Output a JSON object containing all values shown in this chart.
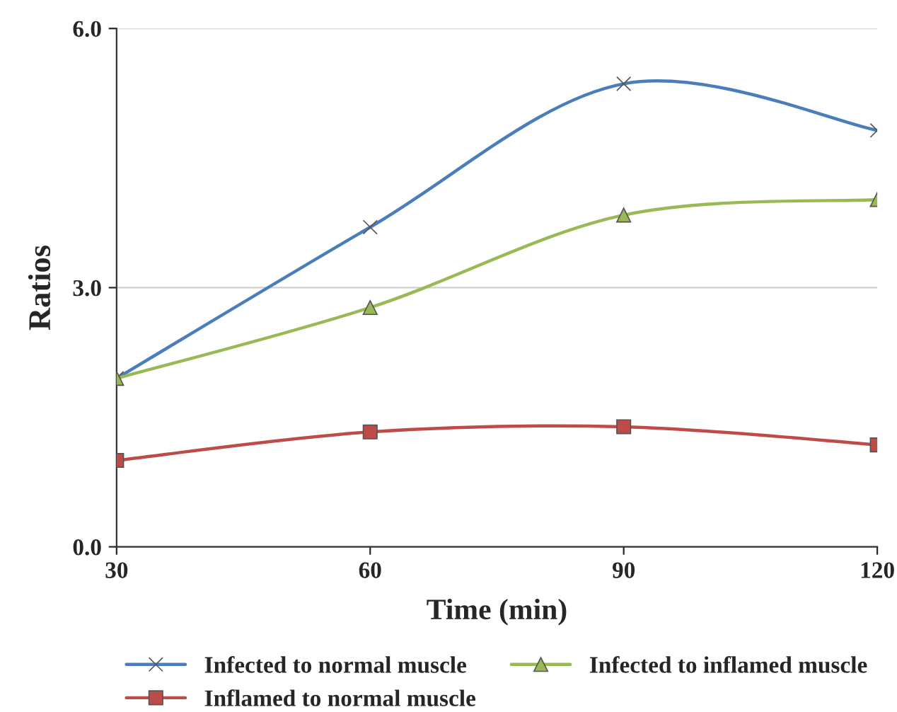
{
  "chart_data": {
    "type": "line",
    "xlabel": "Time (min)",
    "ylabel": "Ratios",
    "x": [
      30,
      60,
      90,
      120
    ],
    "xlim": [
      30,
      120
    ],
    "xticks": [
      30,
      60,
      90,
      120
    ],
    "ylim": [
      0,
      6
    ],
    "yticks": [
      {
        "value": 0,
        "label": "0.0"
      },
      {
        "value": 3,
        "label": "3.0"
      },
      {
        "value": 6,
        "label": "6.0"
      }
    ],
    "grid": "y",
    "legend": "bottom",
    "series": [
      {
        "name": "Infected to normal muscle",
        "color": "#4a7ebb",
        "marker": "cross",
        "values": [
          1.95,
          3.7,
          5.36,
          4.82
        ]
      },
      {
        "name": "Infected to inflamed muscle",
        "color": "#98b954",
        "marker": "triangle",
        "values": [
          1.95,
          2.77,
          3.84,
          4.02
        ]
      },
      {
        "name": "Inflamed to normal muscle",
        "color": "#be4b48",
        "marker": "square",
        "values": [
          1.0,
          1.33,
          1.39,
          1.18
        ]
      }
    ]
  }
}
